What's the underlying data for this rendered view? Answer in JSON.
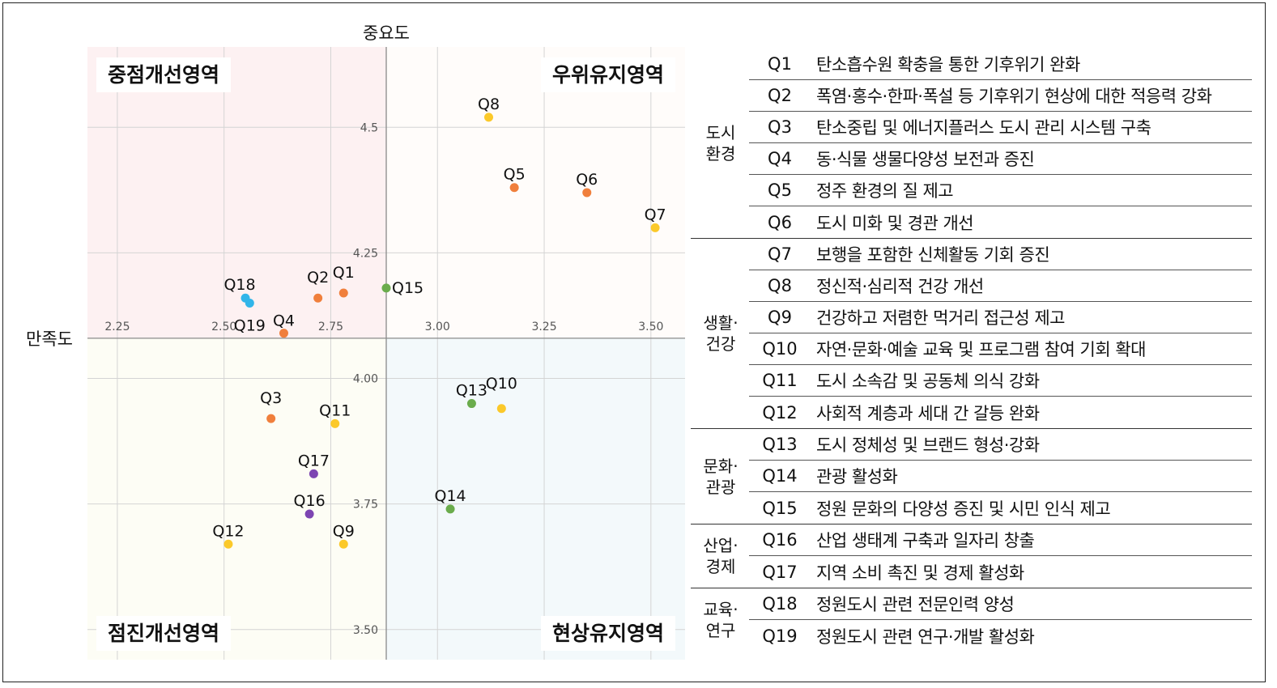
{
  "chart_data": {
    "type": "scatter",
    "xlabel": "만족도",
    "ylabel": "중요도",
    "x_center": 2.88,
    "y_center": 4.08,
    "xlim": [
      2.18,
      3.58
    ],
    "ylim": [
      3.44,
      4.66
    ],
    "x_ticks": [
      "2.25",
      "2.50",
      "2.75",
      "3.00",
      "3.25",
      "3.50"
    ],
    "y_ticks": [
      "4.5",
      "4.25",
      "4.00",
      "3.75",
      "3.50"
    ],
    "grid": true,
    "quadrants": {
      "top_left": {
        "label": "중점개선영역",
        "color": "#fdf1f2"
      },
      "top_right": {
        "label": "우위유지영역",
        "color": "#fffcfa"
      },
      "bottom_left": {
        "label": "점진개선영역",
        "color": "#fdfdf5"
      },
      "bottom_right": {
        "label": "현상유지영역",
        "color": "#f3f9fb"
      }
    },
    "categories": [
      {
        "name": "도시 환경",
        "color": "#f07f3c"
      },
      {
        "name": "생활·건강",
        "color": "#fbc92a"
      },
      {
        "name": "문화·관광",
        "color": "#6aac4c"
      },
      {
        "name": "산업·경제",
        "color": "#7d45b2"
      },
      {
        "name": "교육·연구",
        "color": "#31b5e9"
      }
    ],
    "points": [
      {
        "label": "Q1",
        "x": 2.78,
        "y": 4.17,
        "category": "도시 환경"
      },
      {
        "label": "Q2",
        "x": 2.72,
        "y": 4.16,
        "category": "도시 환경"
      },
      {
        "label": "Q3",
        "x": 2.61,
        "y": 3.92,
        "category": "도시 환경"
      },
      {
        "label": "Q4",
        "x": 2.64,
        "y": 4.09,
        "category": "도시 환경"
      },
      {
        "label": "Q5",
        "x": 3.18,
        "y": 4.38,
        "category": "도시 환경"
      },
      {
        "label": "Q6",
        "x": 3.35,
        "y": 4.37,
        "category": "도시 환경"
      },
      {
        "label": "Q7",
        "x": 3.51,
        "y": 4.3,
        "category": "생활·건강"
      },
      {
        "label": "Q8",
        "x": 3.12,
        "y": 4.52,
        "category": "생활·건강"
      },
      {
        "label": "Q9",
        "x": 2.78,
        "y": 3.67,
        "category": "생활·건강"
      },
      {
        "label": "Q10",
        "x": 3.15,
        "y": 3.94,
        "category": "생활·건강"
      },
      {
        "label": "Q11",
        "x": 2.76,
        "y": 3.91,
        "category": "생활·건강"
      },
      {
        "label": "Q12",
        "x": 2.51,
        "y": 3.67,
        "category": "생활·건강"
      },
      {
        "label": "Q13",
        "x": 3.08,
        "y": 3.95,
        "category": "문화·관광"
      },
      {
        "label": "Q14",
        "x": 3.03,
        "y": 3.74,
        "category": "문화·관광"
      },
      {
        "label": "Q15",
        "x": 2.88,
        "y": 4.18,
        "category": "문화·관광"
      },
      {
        "label": "Q16",
        "x": 2.7,
        "y": 3.73,
        "category": "산업·경제"
      },
      {
        "label": "Q17",
        "x": 2.71,
        "y": 3.81,
        "category": "산업·경제"
      },
      {
        "label": "Q18",
        "x": 2.55,
        "y": 4.16,
        "category": "교육·연구"
      },
      {
        "label": "Q19",
        "x": 2.56,
        "y": 4.15,
        "category": "교육·연구"
      }
    ]
  },
  "table": [
    {
      "category_lines": [
        "도시",
        "환경"
      ],
      "items": [
        {
          "id": "Q1",
          "text": "탄소흡수원 확충을 통한 기후위기 완화"
        },
        {
          "id": "Q2",
          "text": "폭염·홍수·한파·폭설 등 기후위기 현상에 대한 적응력 강화"
        },
        {
          "id": "Q3",
          "text": "탄소중립 및 에너지플러스 도시 관리 시스템 구축"
        },
        {
          "id": "Q4",
          "text": "동·식물 생물다양성 보전과 증진"
        },
        {
          "id": "Q5",
          "text": "정주 환경의 질 제고"
        },
        {
          "id": "Q6",
          "text": "도시 미화 및 경관 개선"
        }
      ]
    },
    {
      "category_lines": [
        "생활·",
        "건강"
      ],
      "items": [
        {
          "id": "Q7",
          "text": "보행을 포함한 신체활동 기회 증진"
        },
        {
          "id": "Q8",
          "text": "정신적·심리적 건강 개선"
        },
        {
          "id": "Q9",
          "text": "건강하고 저렴한 먹거리 접근성 제고"
        },
        {
          "id": "Q10",
          "text": "자연·문화·예술 교육 및 프로그램 참여 기회 확대"
        },
        {
          "id": "Q11",
          "text": "도시 소속감 및 공동체 의식 강화"
        },
        {
          "id": "Q12",
          "text": "사회적 계층과 세대 간 갈등 완화"
        }
      ]
    },
    {
      "category_lines": [
        "문화·",
        "관광"
      ],
      "items": [
        {
          "id": "Q13",
          "text": "도시 정체성 및 브랜드 형성·강화"
        },
        {
          "id": "Q14",
          "text": "관광 활성화"
        },
        {
          "id": "Q15",
          "text": "정원 문화의 다양성 증진 및 시민 인식 제고"
        }
      ]
    },
    {
      "category_lines": [
        "산업·",
        "경제"
      ],
      "items": [
        {
          "id": "Q16",
          "text": "산업 생태계 구축과 일자리 창출"
        },
        {
          "id": "Q17",
          "text": "지역 소비 촉진 및 경제 활성화"
        }
      ]
    },
    {
      "category_lines": [
        "교육·",
        "연구"
      ],
      "items": [
        {
          "id": "Q18",
          "text": "정원도시 관련 전문인력 양성"
        },
        {
          "id": "Q19",
          "text": "정원도시 관련 연구·개발 활성화"
        }
      ]
    }
  ]
}
